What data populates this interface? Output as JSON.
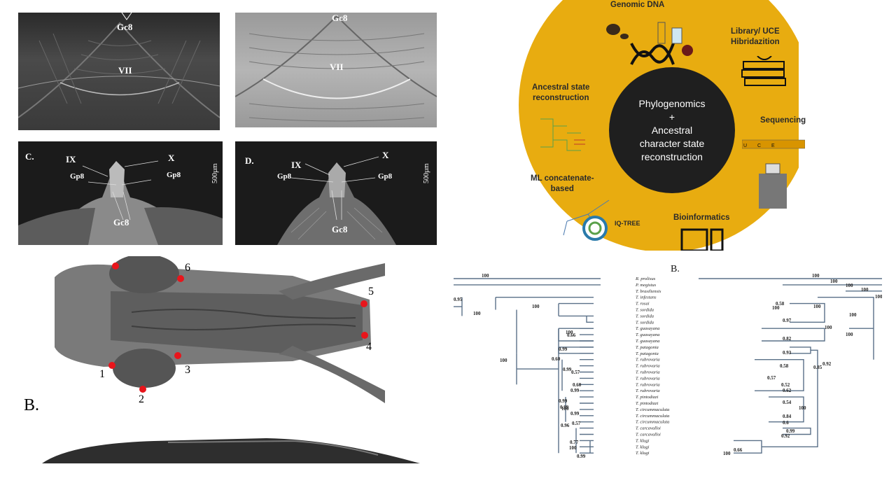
{
  "sem_top": {
    "left": {
      "labels": [
        "Gc8",
        "VII"
      ]
    },
    "right": {
      "labels": [
        "Gc8",
        "VII"
      ]
    }
  },
  "sem_bottom": {
    "panel_c": {
      "letter": "C.",
      "labels": [
        "IX",
        "X",
        "Gp8",
        "Gp8",
        "Gc8"
      ],
      "scale": "500µm"
    },
    "panel_d": {
      "letter": "D.",
      "labels": [
        "IX",
        "X",
        "Gp8",
        "Gp8",
        "Gc8"
      ],
      "scale": "500µm"
    }
  },
  "workflow": {
    "center": "Phylogenomics\n+\nAncestral\ncharacter state\nreconstruction",
    "items": [
      {
        "label": "Genomic DNA",
        "icon": "dna-icon"
      },
      {
        "label": "Library/ UCE\nHibridazition",
        "icon": "books-icon"
      },
      {
        "label": "Sequencing",
        "icon": "sequencer-icon"
      },
      {
        "label": "Bioinformatics",
        "icon": "computer-icon"
      },
      {
        "label": "ML concatenate-\nbased",
        "icon": "tree-icon"
      },
      {
        "label": "Ancestral state\nreconstruction",
        "icon": "phylogeny-icon"
      }
    ],
    "iqtree": "IQ-TREE",
    "seq_letters": [
      "U",
      "C",
      "E"
    ],
    "colors": {
      "background": "#e8ac10",
      "center": "#1f1f1f"
    }
  },
  "head": {
    "landmarks": [
      "1",
      "2",
      "3",
      "4",
      "5",
      "6"
    ],
    "panel_label": "B.",
    "landmark_color": "#e8151b"
  },
  "tree": {
    "panel_label": "B.",
    "taxa": [
      "R. prolixus",
      "P. megistus",
      "T. brasiliensis",
      "T. infestans",
      "T. rosai",
      "T. sordida",
      "T. sordida",
      "T. sordida",
      "T. guasayana",
      "T. guasayana",
      "T. guasayana",
      "T. patagonia",
      "T. patagonia",
      "T. rubrovaria",
      "T. rubrovaria",
      "T. rubrovaria",
      "T. rubrovaria",
      "T. rubrovaria",
      "T. rubrovaria",
      "T. pintodiazi",
      "T. pintodiazi",
      "T. circummaculata",
      "T. circummaculata",
      "T. circummaculata",
      "T. carcavalloi",
      "T. carcavalloi",
      "T. klugi",
      "T. klugi",
      "T. klugi"
    ],
    "left_support": [
      "100",
      "0.95",
      "100",
      "100",
      "100",
      "100",
      "0.66",
      "0.99",
      "0.60",
      "0.99",
      "0.57",
      "0.60",
      "0.99",
      "0.99",
      "0.99",
      "100",
      "0.99",
      "0.57",
      "0.96",
      "0.77",
      "100",
      "0.99"
    ],
    "right_support": [
      "100",
      "100",
      "100",
      "100",
      "100",
      "0.58",
      "100",
      "100",
      "100",
      "0.97",
      "0.82",
      "0.93",
      "0.58",
      "0.85",
      "0.57",
      "0.52",
      "0.62",
      "0.92",
      "0.54",
      "100",
      "0.84",
      "0.6",
      "0.99",
      "0.92",
      "100",
      "0.66",
      "100",
      "100"
    ],
    "branch_color": "#5a7088"
  }
}
